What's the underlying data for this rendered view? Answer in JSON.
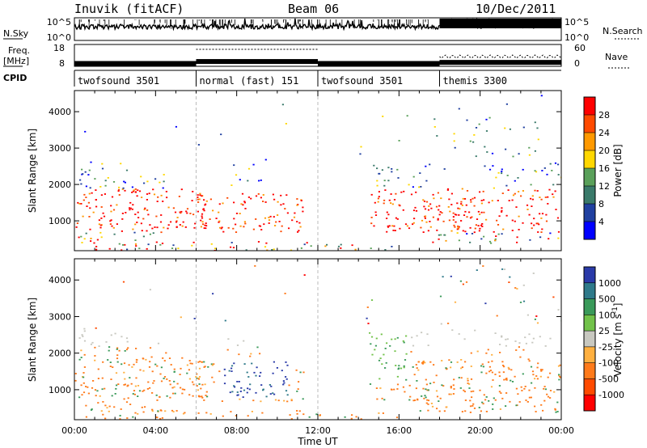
{
  "header": {
    "station": "Inuvik (fitACF)",
    "beam": "Beam 06",
    "date": "10/Dec/2011"
  },
  "chart_data": [
    {
      "type": "line",
      "panel": "noise",
      "left_label": "N.Sky",
      "right_label": "N.Search",
      "y_ticks": [
        "10^5",
        "10^0"
      ],
      "right_y_ticks": [
        "10^5",
        "10^0"
      ]
    },
    {
      "type": "line",
      "panel": "frequency",
      "left_label": "Freq.",
      "left_unit": "[MHz]",
      "right_label": "Nave",
      "y_ticks": [
        "18",
        "8"
      ],
      "right_y_ticks": [
        "60",
        "0"
      ],
      "freq_segments": [
        {
          "start": 0,
          "end": 6,
          "value": 9.3
        },
        {
          "start": 6,
          "end": 12,
          "value": 10.2
        },
        {
          "start": 12,
          "end": 18,
          "value": 9.3
        },
        {
          "start": 18,
          "end": 24,
          "value": 9.8
        }
      ]
    },
    {
      "type": "table",
      "panel": "cpid",
      "label": "CPID",
      "segments": [
        {
          "start": 0,
          "end": 6,
          "label": "twofsound 3501"
        },
        {
          "start": 6,
          "end": 12,
          "label": "normal (fast) 151"
        },
        {
          "start": 12,
          "end": 18,
          "label": "twofsound 3501"
        },
        {
          "start": 18,
          "end": 24,
          "label": "themis 3300"
        }
      ]
    },
    {
      "type": "heatmap",
      "panel": "power",
      "ylabel": "Slant Range [km]",
      "y_ticks": [
        1000,
        2000,
        3000,
        4000
      ],
      "ylim": [
        180,
        4580
      ],
      "colorbar": {
        "title": "Power [dB]",
        "labels": [
          "28",
          "24",
          "20",
          "16",
          "12",
          "8",
          "4"
        ],
        "colors": [
          "#ff0000",
          "#ff4a00",
          "#ff9900",
          "#ffd700",
          "#5aa05a",
          "#3a7a6a",
          "#2040a0",
          "#0000ff"
        ]
      }
    },
    {
      "type": "heatmap",
      "panel": "velocity",
      "ylabel": "Slant Range [km]",
      "y_ticks": [
        1000,
        2000,
        3000,
        4000
      ],
      "ylim": [
        180,
        4580
      ],
      "colorbar": {
        "title": "Velocity [m s",
        "title_sup": "-1",
        "title_end": "]",
        "labels": [
          "1000",
          "500",
          "100",
          "25",
          "-25",
          "-100",
          "-500",
          "-1000"
        ],
        "colors": [
          "#2a3aa8",
          "#2f7a8a",
          "#3a9a5a",
          "#72c24a",
          "#c8c8c0",
          "#ffb040",
          "#ff7a1a",
          "#ff4a00",
          "#ff0000"
        ]
      }
    }
  ],
  "x_axis": {
    "xlabel": "Time UT",
    "xlim": [
      0,
      24
    ],
    "ticks": [
      0,
      4,
      8,
      12,
      16,
      20,
      24
    ],
    "tick_labels": [
      "00:00",
      "04:00",
      "08:00",
      "12:00",
      "16:00",
      "20:00",
      "00:00"
    ]
  }
}
